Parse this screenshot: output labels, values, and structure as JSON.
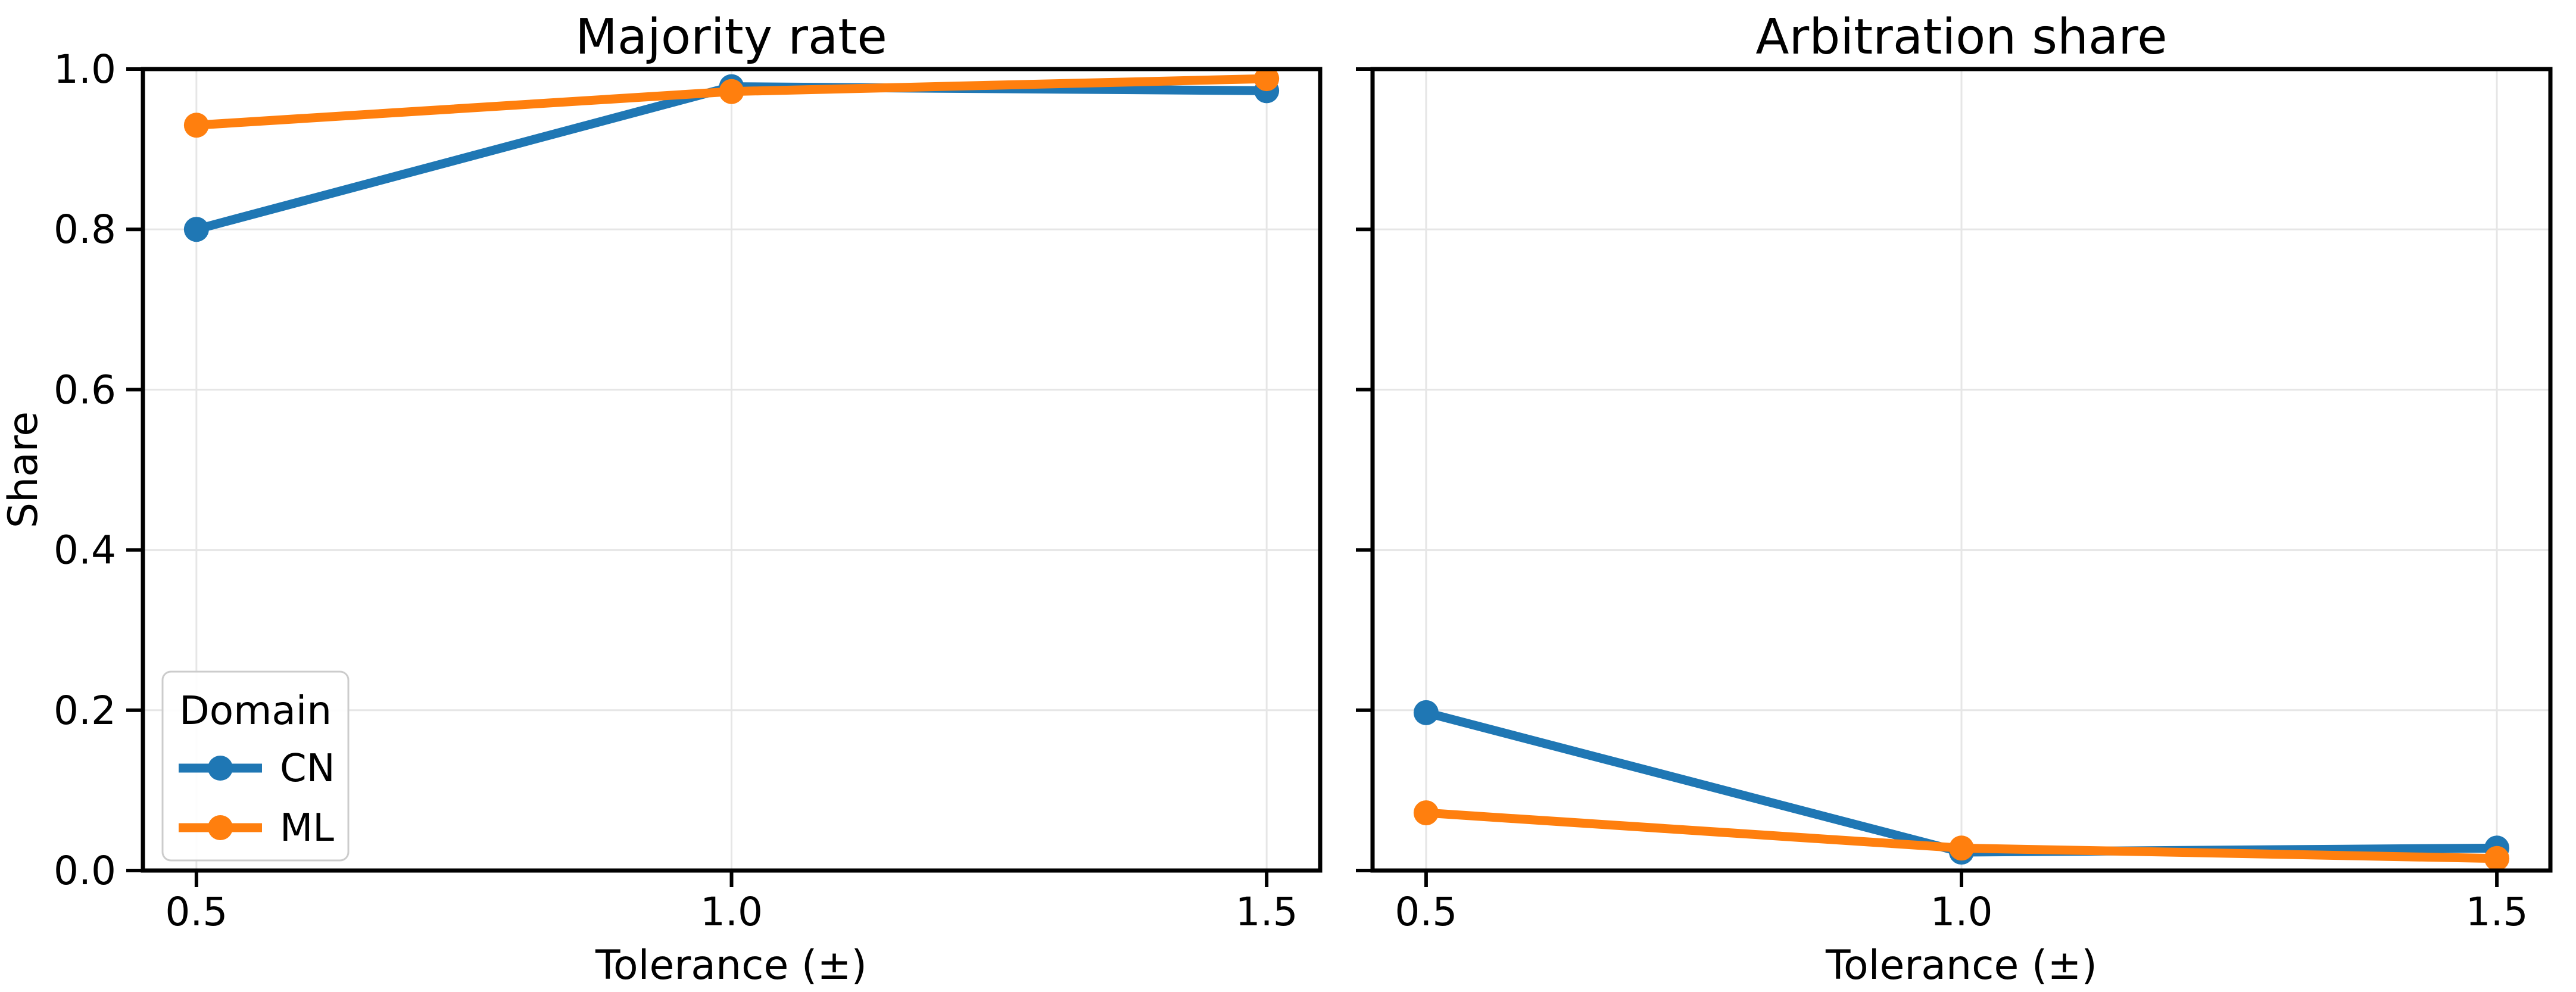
{
  "figure": {
    "background": "#ffffff",
    "text_color": "#000000",
    "grid_color": "#e6e6e6",
    "spine_color": "#000000"
  },
  "chart_data": [
    {
      "type": "line",
      "title": "Majority rate",
      "xlabel": "Tolerance (±)",
      "ylabel": "Share",
      "x": [
        0.5,
        1.0,
        1.5
      ],
      "xtick_labels": [
        "0.5",
        "1.0",
        "1.5"
      ],
      "ytick_values": [
        0.0,
        0.2,
        0.4,
        0.6,
        0.8,
        1.0
      ],
      "ytick_labels": [
        "0.0",
        "0.2",
        "0.4",
        "0.6",
        "0.8",
        "1.0"
      ],
      "xlim": [
        0.45,
        1.55
      ],
      "ylim": [
        0.0,
        1.0
      ],
      "grid": true,
      "legend": {
        "title": "Domain",
        "position": "lower left",
        "visible": true
      },
      "series": [
        {
          "name": "CN",
          "color": "#1f77b4",
          "values": [
            0.8,
            0.978,
            0.973
          ]
        },
        {
          "name": "ML",
          "color": "#ff7f0e",
          "values": [
            0.93,
            0.972,
            0.988
          ]
        }
      ]
    },
    {
      "type": "line",
      "title": "Arbitration share",
      "xlabel": "Tolerance (±)",
      "ylabel": "",
      "x": [
        0.5,
        1.0,
        1.5
      ],
      "xtick_labels": [
        "0.5",
        "1.0",
        "1.5"
      ],
      "ytick_values": [
        0.0,
        0.2,
        0.4,
        0.6,
        0.8,
        1.0
      ],
      "ytick_labels": [],
      "xlim": [
        0.45,
        1.55
      ],
      "ylim": [
        0.0,
        1.0
      ],
      "grid": true,
      "legend": {
        "visible": false
      },
      "series": [
        {
          "name": "CN",
          "color": "#1f77b4",
          "values": [
            0.197,
            0.023,
            0.028
          ]
        },
        {
          "name": "ML",
          "color": "#ff7f0e",
          "values": [
            0.072,
            0.028,
            0.015
          ]
        }
      ]
    }
  ]
}
